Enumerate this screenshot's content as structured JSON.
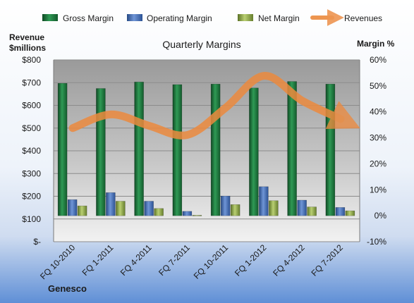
{
  "chart_data": {
    "type": "bar",
    "title": "Quarterly Margins",
    "left_axis_label": [
      "Revenue",
      "$millions"
    ],
    "right_axis_label": "Margin %",
    "categories": [
      "FQ 10-2010",
      "FQ 1-2011",
      "FQ 4-2011",
      "FQ 7-2011",
      "FQ 10-2011",
      "FQ 1-2012",
      "FQ 4-2012",
      "FQ 7-2012"
    ],
    "ylim_left": [
      0,
      800
    ],
    "ylim_right": [
      -10,
      60
    ],
    "left_ticks": [
      "$-",
      "$100",
      "$200",
      "$300",
      "$400",
      "$500",
      "$600",
      "$700",
      "$800"
    ],
    "right_ticks": [
      "-10%",
      "0%",
      "10%",
      "20%",
      "30%",
      "40%",
      "50%",
      "60%"
    ],
    "series": [
      {
        "name": "Gross Margin",
        "axis": "right",
        "values": [
          51.0,
          49.0,
          51.5,
          50.5,
          50.7,
          49.2,
          51.7,
          50.7
        ]
      },
      {
        "name": "Operating Margin",
        "axis": "right",
        "values": [
          6.2,
          8.9,
          5.6,
          1.7,
          7.6,
          11.2,
          6.0,
          3.2
        ]
      },
      {
        "name": "Net Margin",
        "axis": "right",
        "values": [
          3.8,
          5.6,
          2.8,
          0.2,
          4.3,
          5.8,
          3.4,
          1.9
        ]
      },
      {
        "name": "Revenues",
        "axis": "left",
        "type": "line",
        "values": [
          500,
          560,
          510,
          470,
          590,
          730,
          620,
          540
        ]
      }
    ],
    "colors": {
      "Gross Margin": "#1e6e3a",
      "Operating Margin": "#3e6ab0",
      "Net Margin": "#8aa34a",
      "Revenues": "#ec8a3e"
    },
    "grid": true,
    "legend_position": "top"
  },
  "company": "Genesco"
}
